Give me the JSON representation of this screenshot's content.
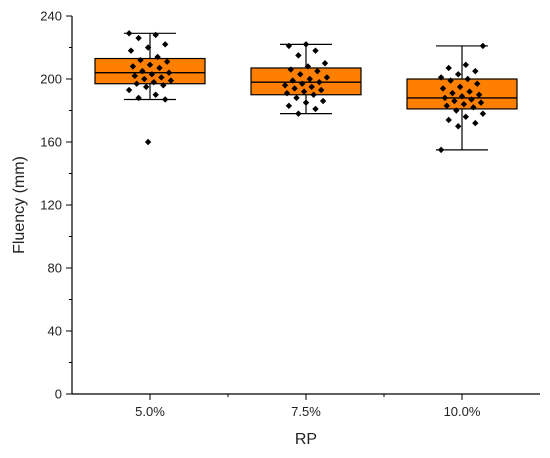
{
  "chart_data": {
    "type": "box",
    "xlabel": "RP",
    "ylabel": "Fluency (mm)",
    "ylim": [
      0,
      240
    ],
    "yticks": [
      0,
      40,
      80,
      120,
      160,
      200,
      240
    ],
    "categories": [
      "5.0%",
      "7.5%",
      "10.0%"
    ],
    "grid": false,
    "colors": {
      "box_fill": "#FF8000",
      "box_stroke": "#000000",
      "point": "#000000"
    },
    "boxes": [
      {
        "category": "5.0%",
        "whisker_low": 187,
        "q1": 197,
        "median": 204,
        "q3": 213,
        "whisker_high": 229,
        "points": [
          229,
          228,
          226,
          222,
          220,
          218,
          214,
          212,
          211,
          209,
          208,
          207,
          205,
          204,
          203,
          202,
          201,
          200,
          199,
          198,
          197,
          196,
          195,
          193,
          190,
          188,
          187,
          160
        ]
      },
      {
        "category": "7.5%",
        "whisker_low": 178,
        "q1": 190,
        "median": 198,
        "q3": 207,
        "whisker_high": 222,
        "points": [
          222,
          221,
          218,
          215,
          210,
          208,
          206,
          205,
          203,
          201,
          200,
          199,
          198,
          197,
          196,
          195,
          194,
          193,
          192,
          191,
          190,
          188,
          186,
          185,
          183,
          181,
          178
        ]
      },
      {
        "category": "10.0%",
        "whisker_low": 155,
        "q1": 181,
        "median": 188,
        "q3": 200,
        "whisker_high": 221,
        "points": [
          221,
          209,
          207,
          205,
          203,
          201,
          200,
          199,
          197,
          195,
          194,
          192,
          191,
          190,
          189,
          188,
          187,
          186,
          185,
          184,
          183,
          182,
          180,
          178,
          176,
          174,
          172,
          170,
          155
        ]
      }
    ]
  }
}
